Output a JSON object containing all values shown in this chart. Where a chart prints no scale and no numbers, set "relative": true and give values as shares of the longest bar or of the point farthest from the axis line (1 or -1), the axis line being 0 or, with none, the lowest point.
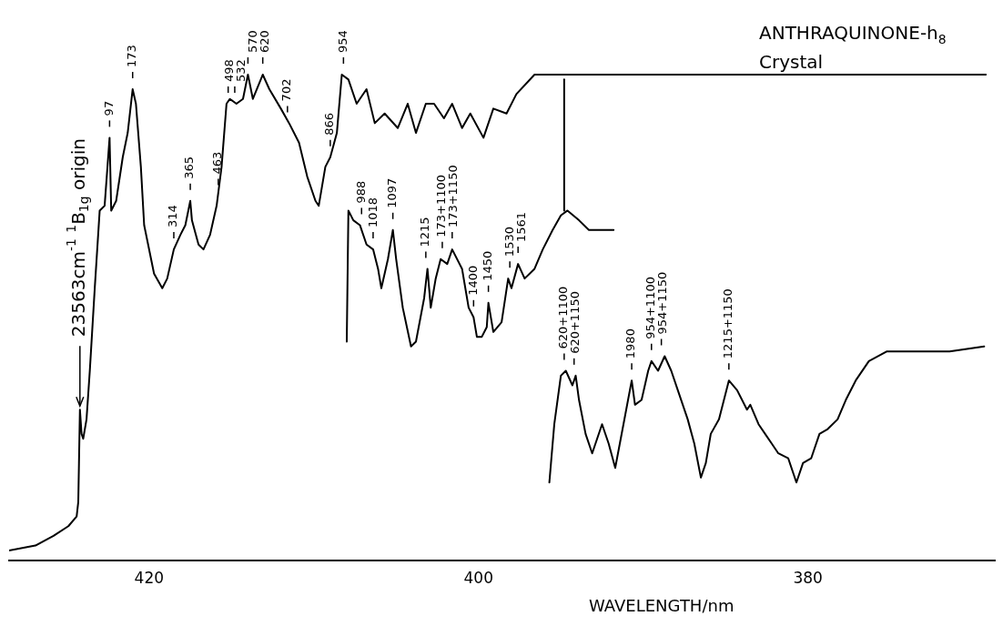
{
  "chart_data": {
    "type": "line",
    "relative": true,
    "title": "ANTHRAQUINONE-h$_{8}$",
    "subtitle": "Crystal",
    "xlabel": "WAVELENGTH/nm",
    "xlim": [
      428.5,
      368.6
    ],
    "xticks": [
      420,
      400,
      380
    ],
    "marker": "none",
    "legend": false,
    "series": [
      {
        "color": "#000000",
        "x": [
          428.5,
          426.9,
          425.8,
          424.9,
          424.4,
          424.3,
          424.2,
          424.1,
          424.0,
          423.8,
          423.6,
          423.3,
          423.0,
          422.7,
          422.4,
          422.3,
          422.0,
          421.6,
          421.3,
          421.0,
          420.8,
          420.5,
          420.3,
          419.7,
          419.2,
          418.9,
          418.5,
          418.1,
          417.8,
          417.5,
          417.4,
          417.0,
          416.7,
          416.3,
          415.9,
          415.6,
          415.3,
          415.1,
          414.7,
          414.3,
          414.0,
          413.7,
          413.1,
          412.7,
          412.0,
          411.5,
          410.9,
          410.4,
          409.9,
          409.7,
          409.3,
          409.0,
          408.6,
          408.3,
          407.9,
          407.4,
          406.8,
          406.3,
          405.7,
          404.9,
          404.3,
          403.8,
          403.2,
          402.7,
          402.1,
          401.6,
          401.0,
          400.5,
          399.7,
          399.1,
          398.3,
          397.7,
          396.6,
          395.5,
          390.6,
          385.1,
          379.6,
          374.1,
          369.2
        ],
        "values": [
          0.02,
          0.03,
          0.05,
          0.07,
          0.09,
          0.12,
          0.31,
          0.26,
          0.25,
          0.29,
          0.39,
          0.56,
          0.72,
          0.73,
          0.87,
          0.72,
          0.74,
          0.83,
          0.88,
          0.97,
          0.94,
          0.81,
          0.69,
          0.59,
          0.56,
          0.58,
          0.64,
          0.67,
          0.69,
          0.74,
          0.7,
          0.65,
          0.64,
          0.67,
          0.73,
          0.81,
          0.94,
          0.95,
          0.94,
          0.95,
          1.0,
          0.95,
          1.0,
          0.97,
          0.93,
          0.9,
          0.86,
          0.79,
          0.74,
          0.73,
          0.81,
          0.83,
          0.88,
          1.0,
          0.99,
          0.94,
          0.97,
          0.9,
          0.92,
          0.89,
          0.94,
          0.88,
          0.94,
          0.94,
          0.91,
          0.94,
          0.89,
          0.92,
          0.87,
          0.93,
          0.92,
          0.96,
          1.0,
          1.0,
          1.0,
          1.0,
          1.0,
          1.0,
          1.0
        ]
      },
      {
        "color": "#000000",
        "x": [
          408.0,
          407.9,
          407.6,
          407.2,
          406.8,
          406.4,
          406.1,
          405.9,
          405.5,
          405.2,
          405.0,
          404.6,
          404.1,
          403.8,
          403.3,
          403.1,
          402.9,
          402.6,
          402.3,
          401.9,
          401.6,
          401.0,
          400.6,
          400.3,
          400.1,
          399.8,
          399.5,
          399.4,
          399.1,
          398.6,
          398.2,
          398.0,
          397.6,
          397.2,
          396.6,
          396.1,
          395.5,
          395.0,
          394.6,
          393.9,
          393.3,
          392.5,
          391.8
        ],
        "values": [
          0.45,
          0.72,
          0.7,
          0.69,
          0.65,
          0.64,
          0.6,
          0.56,
          0.62,
          0.68,
          0.62,
          0.52,
          0.44,
          0.45,
          0.54,
          0.6,
          0.52,
          0.58,
          0.62,
          0.61,
          0.64,
          0.6,
          0.52,
          0.5,
          0.46,
          0.46,
          0.48,
          0.53,
          0.47,
          0.49,
          0.58,
          0.56,
          0.61,
          0.58,
          0.6,
          0.64,
          0.68,
          0.71,
          0.72,
          0.7,
          0.68,
          0.68,
          0.68
        ]
      },
      {
        "color": "#000000",
        "x": [
          394.8,
          394.8
        ],
        "values": [
          0.72,
          0.99
        ]
      },
      {
        "color": "#000000",
        "x": [
          395.7,
          395.4,
          395.0,
          394.7,
          394.3,
          394.1,
          393.9,
          393.5,
          393.1,
          392.8,
          392.5,
          392.1,
          391.7,
          391.2,
          390.7,
          390.5,
          390.1,
          389.7,
          389.5,
          389.1,
          388.7,
          388.3,
          387.9,
          387.3,
          386.9,
          386.5,
          386.2,
          385.9,
          385.4,
          384.8,
          384.3,
          383.7,
          383.5,
          383.0,
          382.6,
          382.2,
          381.8,
          381.2,
          380.7,
          380.3,
          379.8,
          379.3,
          378.8,
          378.2,
          377.7,
          377.1,
          376.3,
          375.2,
          373.6,
          371.4,
          369.3
        ],
        "values": [
          0.16,
          0.28,
          0.38,
          0.39,
          0.36,
          0.38,
          0.33,
          0.26,
          0.22,
          0.25,
          0.28,
          0.24,
          0.19,
          0.28,
          0.37,
          0.32,
          0.33,
          0.39,
          0.41,
          0.39,
          0.42,
          0.39,
          0.35,
          0.29,
          0.24,
          0.17,
          0.2,
          0.26,
          0.29,
          0.37,
          0.35,
          0.31,
          0.32,
          0.28,
          0.26,
          0.24,
          0.22,
          0.21,
          0.16,
          0.2,
          0.21,
          0.26,
          0.27,
          0.29,
          0.33,
          0.37,
          0.41,
          0.43,
          0.43,
          0.43,
          0.44
        ]
      }
    ],
    "annotations": [
      {
        "text": "23563cm$^{-1}$ $^{1}$B$_{1g}$ origin",
        "x": 424.2,
        "y": 0.31
      },
      {
        "text": "97",
        "x": 422.4,
        "y": 0.87
      },
      {
        "text": "173",
        "x": 421.0,
        "y": 0.97
      },
      {
        "text": "314",
        "x": 418.5,
        "y": 0.64
      },
      {
        "text": "365",
        "x": 417.5,
        "y": 0.74
      },
      {
        "text": "463",
        "x": 415.8,
        "y": 0.75
      },
      {
        "text": "498",
        "x": 415.2,
        "y": 0.94
      },
      {
        "text": "532",
        "x": 414.8,
        "y": 0.94
      },
      {
        "text": "570",
        "x": 414.0,
        "y": 1.0
      },
      {
        "text": "620",
        "x": 413.1,
        "y": 1.0
      },
      {
        "text": "702",
        "x": 411.6,
        "y": 0.9
      },
      {
        "text": "866",
        "x": 409.0,
        "y": 0.83
      },
      {
        "text": "954",
        "x": 408.2,
        "y": 1.0
      },
      {
        "text": "988",
        "x": 407.1,
        "y": 0.69
      },
      {
        "text": "1018",
        "x": 406.4,
        "y": 0.64
      },
      {
        "text": "1097",
        "x": 405.2,
        "y": 0.68
      },
      {
        "text": "1215",
        "x": 403.2,
        "y": 0.6
      },
      {
        "text": "173+1100",
        "x": 402.2,
        "y": 0.62
      },
      {
        "text": "173+1150",
        "x": 401.6,
        "y": 0.64
      },
      {
        "text": "1400",
        "x": 400.3,
        "y": 0.5
      },
      {
        "text": "1450",
        "x": 399.4,
        "y": 0.53
      },
      {
        "text": "1530",
        "x": 398.1,
        "y": 0.58
      },
      {
        "text": "1561",
        "x": 397.6,
        "y": 0.61
      },
      {
        "text": "620+1100",
        "x": 394.8,
        "y": 0.39
      },
      {
        "text": "620+1150",
        "x": 394.2,
        "y": 0.38
      },
      {
        "text": "1980",
        "x": 390.7,
        "y": 0.37
      },
      {
        "text": "954+1100",
        "x": 389.5,
        "y": 0.41
      },
      {
        "text": "954+1150",
        "x": 388.9,
        "y": 0.42
      },
      {
        "text": "1215+1150",
        "x": 384.8,
        "y": 0.37
      }
    ]
  }
}
